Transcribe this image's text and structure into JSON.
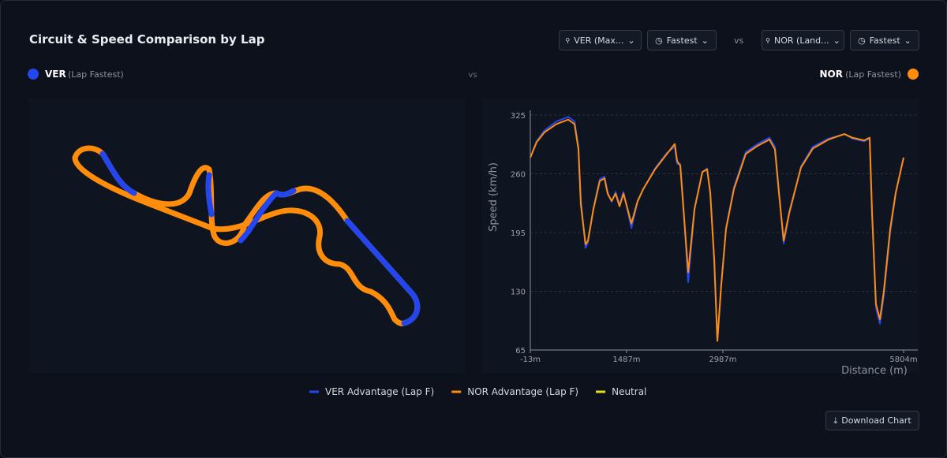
{
  "header": {
    "title": "Circuit & Speed Comparison by Lap",
    "controls": {
      "driver_a": "VER (Max...",
      "lap_a": "Fastest",
      "vs": "vs",
      "driver_b": "NOR (Land...",
      "lap_b": "Fastest"
    }
  },
  "drivers": {
    "a": {
      "code": "VER",
      "lap": "(Lap Fastest)",
      "color": "#2446f0"
    },
    "vs": "vs",
    "b": {
      "code": "NOR",
      "lap": "(Lap Fastest)",
      "color": "#ff8c0a"
    }
  },
  "legend": [
    {
      "label": "VER Advantage (Lap F)",
      "color": "#2446f0"
    },
    {
      "label": "NOR Advantage (Lap F)",
      "color": "#ff8c0a"
    },
    {
      "label": "Neutral",
      "color": "#e6e01a"
    }
  ],
  "download": "Download Chart",
  "chart_data": {
    "type": "line",
    "y_label": "Speed (km/h)",
    "x_label": "Distance (m)",
    "xlim": [
      -13,
      5804
    ],
    "xticks": [
      {
        "value": -13,
        "label": "-13m"
      },
      {
        "value": 1487,
        "label": "1487m"
      },
      {
        "value": 2987,
        "label": "2987m"
      },
      {
        "value": 5804,
        "label": "5804m"
      }
    ],
    "ylim": [
      65,
      325
    ],
    "yticks": [
      65,
      130,
      195,
      260,
      325
    ],
    "grid": true,
    "x": [
      -13,
      85,
      208,
      393,
      577,
      676,
      737,
      774,
      848,
      885,
      971,
      1069,
      1143,
      1192,
      1254,
      1316,
      1377,
      1439,
      1562,
      1660,
      1746,
      1931,
      2115,
      2238,
      2275,
      2324,
      2373,
      2447,
      2545,
      2668,
      2742,
      2791,
      2853,
      2902,
      2963,
      3037,
      3160,
      3344,
      3529,
      3713,
      3799,
      3861,
      3935,
      4021,
      4205,
      4390,
      4636,
      4882,
      5005,
      5189,
      5275,
      5312,
      5373,
      5435,
      5496,
      5595,
      5681,
      5804
    ],
    "series": [
      {
        "color": "#2446f0",
        "values": [
          278,
          296,
          308,
          318,
          323,
          318,
          290,
          232,
          178,
          184,
          222,
          254,
          257,
          240,
          229,
          240,
          226,
          240,
          200,
          229,
          243,
          266,
          283,
          290,
          271,
          271,
          225,
          140,
          220,
          262,
          266,
          240,
          166,
          75,
          137,
          200,
          245,
          284,
          293,
          300,
          290,
          242,
          183,
          215,
          268,
          290,
          299,
          304,
          299,
          296,
          299,
          220,
          112,
          94,
          125,
          195,
          238,
          278
        ]
      },
      {
        "color": "#ff8c0a",
        "values": [
          278,
          295,
          306,
          315,
          320,
          315,
          287,
          226,
          182,
          186,
          221,
          252,
          255,
          238,
          230,
          238,
          224,
          238,
          205,
          230,
          243,
          265,
          282,
          293,
          274,
          269,
          221,
          151,
          221,
          262,
          265,
          239,
          164,
          75,
          138,
          199,
          243,
          282,
          291,
          298,
          287,
          239,
          186,
          217,
          267,
          288,
          298,
          304,
          300,
          297,
          300,
          217,
          116,
          99,
          130,
          199,
          239,
          278
        ]
      }
    ]
  }
}
